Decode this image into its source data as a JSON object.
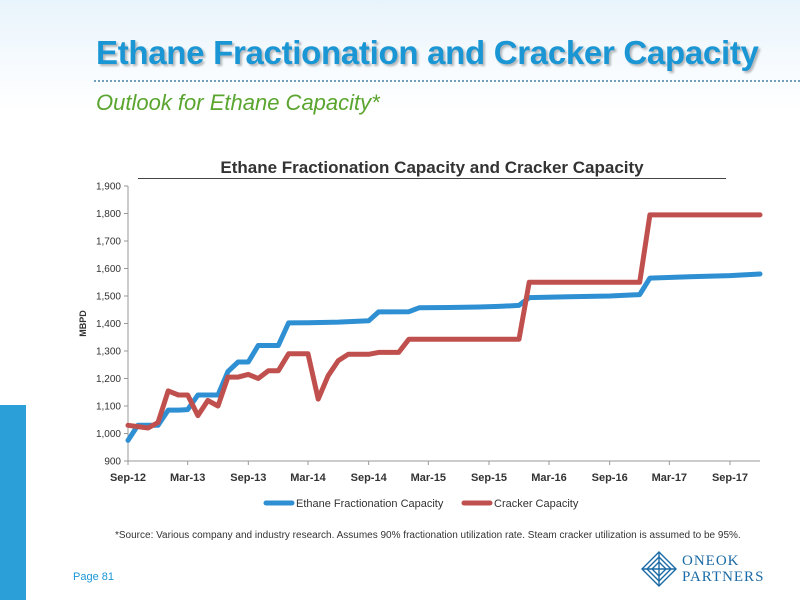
{
  "slide": {
    "title": "Ethane Fractionation and Cracker Capacity",
    "subtitle": "Outlook for Ethane Capacity*",
    "footnote": "*Source: Various company and industry research.  Assumes 90% fractionation utilization rate. Steam cracker utilization is assumed to be 95%.",
    "page_number": "Page 81",
    "logo": {
      "line1": "ONEOK",
      "line2": "PARTNERS"
    }
  },
  "colors": {
    "title": "#1a96d4",
    "subtitle": "#5aa52f",
    "side_bar": "#2a9fd8",
    "fractionation": "#2f8fd3",
    "cracker": "#c0504d"
  },
  "chart_data": {
    "type": "line",
    "title": "Ethane Fractionation Capacity and Cracker Capacity",
    "xlabel": "",
    "ylabel": "MBPD",
    "ylim": [
      900,
      1900
    ],
    "yticks": [
      900,
      1000,
      1100,
      1200,
      1300,
      1400,
      1500,
      1600,
      1700,
      1800,
      1900
    ],
    "x_tick_labels": [
      "Sep-12",
      "Mar-13",
      "Sep-13",
      "Mar-14",
      "Sep-14",
      "Mar-15",
      "Sep-15",
      "Mar-16",
      "Sep-16",
      "Mar-17",
      "Sep-17"
    ],
    "x_start": "2012-09",
    "x_end": "2017-12",
    "grid": false,
    "legend_position": "bottom",
    "series": [
      {
        "name": "Ethane Fractionation Capacity",
        "color": "#2f8fd3",
        "points": [
          [
            "2012-09-01",
            975
          ],
          [
            "2012-10-01",
            1030
          ],
          [
            "2012-11-01",
            1030
          ],
          [
            "2012-12-01",
            1030
          ],
          [
            "2013-01-01",
            1085
          ],
          [
            "2013-02-01",
            1085
          ],
          [
            "2013-03-01",
            1087
          ],
          [
            "2013-04-01",
            1140
          ],
          [
            "2013-05-01",
            1140
          ],
          [
            "2013-06-01",
            1140
          ],
          [
            "2013-07-01",
            1225
          ],
          [
            "2013-08-01",
            1260
          ],
          [
            "2013-09-01",
            1260
          ],
          [
            "2013-10-01",
            1320
          ],
          [
            "2013-11-01",
            1320
          ],
          [
            "2013-12-01",
            1320
          ],
          [
            "2014-01-01",
            1402
          ],
          [
            "2014-03-01",
            1403
          ],
          [
            "2014-06-01",
            1405
          ],
          [
            "2014-09-01",
            1410
          ],
          [
            "2014-10-01",
            1442
          ],
          [
            "2015-01-01",
            1443
          ],
          [
            "2015-02-01",
            1457
          ],
          [
            "2015-05-01",
            1458
          ],
          [
            "2015-08-01",
            1460
          ],
          [
            "2015-10-01",
            1462
          ],
          [
            "2015-12-01",
            1466
          ],
          [
            "2016-01-01",
            1494
          ],
          [
            "2016-05-01",
            1497
          ],
          [
            "2016-09-01",
            1500
          ],
          [
            "2016-12-01",
            1505
          ],
          [
            "2017-01-01",
            1565
          ],
          [
            "2017-05-01",
            1570
          ],
          [
            "2017-09-01",
            1574
          ],
          [
            "2017-12-01",
            1580
          ]
        ]
      },
      {
        "name": "Cracker Capacity",
        "color": "#c0504d",
        "points": [
          [
            "2012-09-01",
            1030
          ],
          [
            "2012-10-01",
            1025
          ],
          [
            "2012-11-01",
            1020
          ],
          [
            "2012-12-01",
            1040
          ],
          [
            "2013-01-01",
            1155
          ],
          [
            "2013-02-01",
            1140
          ],
          [
            "2013-03-01",
            1140
          ],
          [
            "2013-04-01",
            1065
          ],
          [
            "2013-05-01",
            1120
          ],
          [
            "2013-06-01",
            1100
          ],
          [
            "2013-07-01",
            1205
          ],
          [
            "2013-08-01",
            1205
          ],
          [
            "2013-09-01",
            1215
          ],
          [
            "2013-10-01",
            1200
          ],
          [
            "2013-11-01",
            1228
          ],
          [
            "2013-12-01",
            1228
          ],
          [
            "2014-01-01",
            1290
          ],
          [
            "2014-02-01",
            1290
          ],
          [
            "2014-03-01",
            1290
          ],
          [
            "2014-04-01",
            1125
          ],
          [
            "2014-05-01",
            1210
          ],
          [
            "2014-06-01",
            1265
          ],
          [
            "2014-07-01",
            1288
          ],
          [
            "2014-09-01",
            1288
          ],
          [
            "2014-10-01",
            1295
          ],
          [
            "2014-12-01",
            1295
          ],
          [
            "2015-01-01",
            1343
          ],
          [
            "2015-12-01",
            1343
          ],
          [
            "2016-01-01",
            1550
          ],
          [
            "2016-12-01",
            1550
          ],
          [
            "2017-01-01",
            1795
          ],
          [
            "2017-12-01",
            1795
          ]
        ]
      }
    ]
  }
}
